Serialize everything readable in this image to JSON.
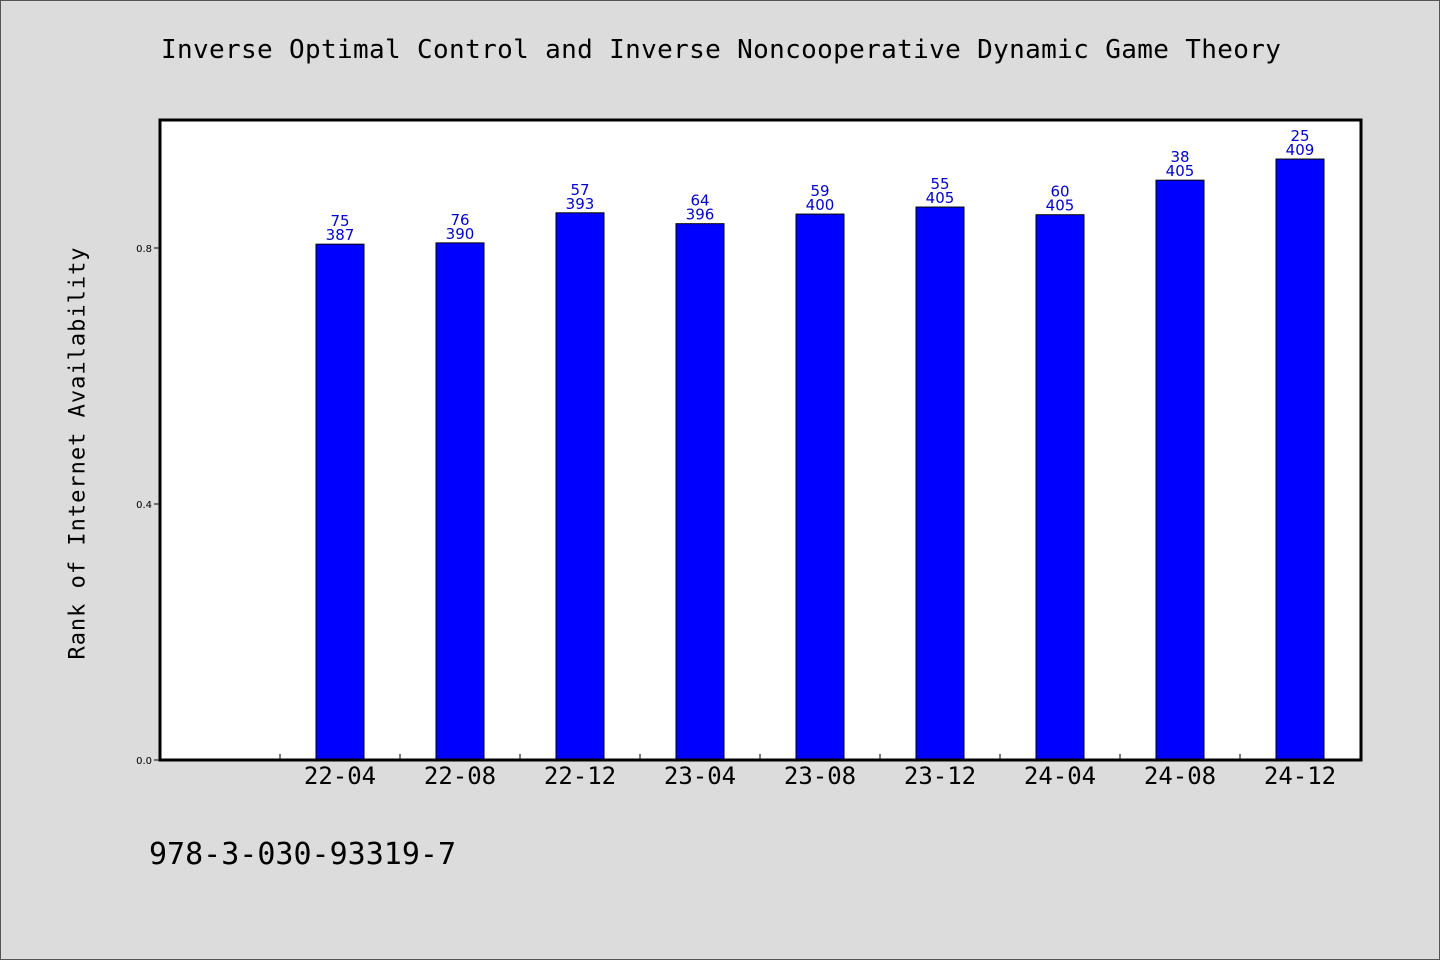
{
  "chart_data": {
    "type": "bar",
    "title": "Inverse Optimal Control and Inverse Noncooperative Dynamic Game Theory",
    "xlabel": "",
    "ylabel": "Rank of Internet Availability",
    "categories": [
      "22-04",
      "22-08",
      "22-12",
      "23-04",
      "23-08",
      "23-12",
      "24-04",
      "24-08",
      "24-12"
    ],
    "values": [
      0.806,
      0.808,
      0.855,
      0.838,
      0.853,
      0.864,
      0.852,
      0.906,
      0.939
    ],
    "labels_top": [
      "75",
      "76",
      "57",
      "64",
      "59",
      "55",
      "60",
      "38",
      "25"
    ],
    "labels_bottom": [
      "387",
      "390",
      "393",
      "396",
      "400",
      "405",
      "405",
      "405",
      "409"
    ],
    "yticks": [
      "0.0",
      "0.4",
      "0.8"
    ],
    "ylim": [
      0,
      1.0
    ],
    "bar_color": "#0000ff",
    "label_color": "#0000cc",
    "grid": false
  },
  "footer": {
    "code": "978-3-030-93319-7"
  }
}
